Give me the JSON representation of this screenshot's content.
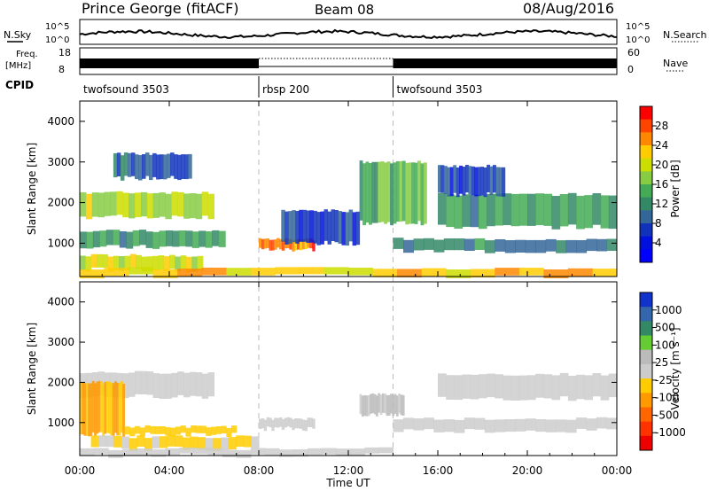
{
  "header": {
    "station": "Prince George (fitACF)",
    "beam": "Beam 08",
    "date": "08/Aug/2016"
  },
  "top_panels": {
    "nsky_label": "N.Sky",
    "nsky_ticks": [
      "10^5",
      "10^0"
    ],
    "nsearch_label": "N.Search",
    "freq_label": "Freq.",
    "freq_unit": "[MHz]",
    "freq_ticks": [
      "18",
      "8"
    ],
    "nave_ticks": [
      "60",
      "0"
    ],
    "nave_label": "Nave",
    "cpid_label": "CPID",
    "cpid_segments": [
      {
        "name": "twofsound 3503",
        "start": 0,
        "end": 8
      },
      {
        "name": "rbsp 200",
        "start": 8,
        "end": 14
      },
      {
        "name": "twofsound 3503",
        "start": 14,
        "end": 24
      }
    ]
  },
  "power_colorbar": {
    "label": "Power [dB]",
    "ticks": [
      "28",
      "24",
      "20",
      "16",
      "12",
      "8",
      "4"
    ],
    "colors": [
      "#ff0000",
      "#ff4400",
      "#ff8800",
      "#ffcc00",
      "#ccdd00",
      "#88cc44",
      "#44aa55",
      "#338866",
      "#336699",
      "#1133bb",
      "#0011dd",
      "#0000ff"
    ]
  },
  "velocity_colorbar": {
    "label": "Velocity [m s⁻¹]",
    "ticks": [
      "1000",
      "500",
      "100",
      "25",
      "-25",
      "-100",
      "-500",
      "-1000"
    ],
    "colors": [
      "#1133cc",
      "#3366aa",
      "#338866",
      "#66cc33",
      "#bbbbbb",
      "#cccccc",
      "#ffcc00",
      "#ff9900",
      "#ff6600",
      "#ff3300",
      "#ee0000"
    ]
  },
  "axes": {
    "ylabel": "Slant Range [km]",
    "yticks": [
      "4000",
      "3000",
      "2000",
      "1000"
    ],
    "xlabel": "Time UT",
    "xticks": [
      "00:00",
      "04:00",
      "08:00",
      "12:00",
      "16:00",
      "20:00",
      "00:00"
    ]
  },
  "chart_data": [
    {
      "type": "heatmap",
      "title": "",
      "variable": "Power",
      "units": "dB",
      "xlabel": "",
      "ylabel": "Slant Range [km]",
      "xlim_hours": [
        0,
        24
      ],
      "ylim_km": [
        180,
        4500
      ],
      "color_range": [
        0,
        30
      ],
      "bands": [
        {
          "t0": 0.0,
          "t1": 6.0,
          "r0": 1650,
          "r1": 2250,
          "power": 18
        },
        {
          "t0": 0.0,
          "t1": 6.5,
          "r0": 900,
          "r1": 1300,
          "power": 12
        },
        {
          "t0": 0.0,
          "t1": 5.5,
          "r0": 350,
          "r1": 700,
          "power": 20
        },
        {
          "t0": 1.5,
          "t1": 5.0,
          "r0": 2600,
          "r1": 3200,
          "power": 8
        },
        {
          "t0": 8.0,
          "t1": 10.5,
          "r0": 850,
          "r1": 1100,
          "power": 26
        },
        {
          "t0": 9.0,
          "t1": 12.5,
          "r0": 1000,
          "r1": 1800,
          "power": 6
        },
        {
          "t0": 12.5,
          "t1": 15.5,
          "r0": 1500,
          "r1": 3000,
          "power": 14
        },
        {
          "t0": 14.0,
          "t1": 24.0,
          "r0": 800,
          "r1": 1100,
          "power": 10
        },
        {
          "t0": 16.0,
          "t1": 24.0,
          "r0": 1400,
          "r1": 2200,
          "power": 12
        },
        {
          "t0": 16.0,
          "t1": 19.0,
          "r0": 2200,
          "r1": 2900,
          "power": 6
        },
        {
          "t0": 0.0,
          "t1": 24.0,
          "r0": 180,
          "r1": 380,
          "power": 22
        }
      ]
    },
    {
      "type": "heatmap",
      "title": "",
      "variable": "Velocity",
      "units": "m s⁻¹",
      "xlabel": "Time UT",
      "ylabel": "Slant Range [km]",
      "xlim_hours": [
        0,
        24
      ],
      "ylim_km": [
        180,
        4500
      ],
      "color_range": [
        -1000,
        1000
      ],
      "bands": [
        {
          "t0": 0.0,
          "t1": 6.0,
          "r0": 1650,
          "r1": 2250,
          "velocity": 0
        },
        {
          "t0": 0.0,
          "t1": 2.0,
          "r0": 700,
          "r1": 2000,
          "velocity": -300
        },
        {
          "t0": 2.0,
          "t1": 7.0,
          "r0": 700,
          "r1": 900,
          "velocity": -200
        },
        {
          "t0": 0.5,
          "t1": 8.0,
          "r0": 350,
          "r1": 650,
          "velocity": -120
        },
        {
          "t0": 8.0,
          "t1": 10.5,
          "r0": 850,
          "r1": 1100,
          "velocity": 0
        },
        {
          "t0": 12.5,
          "t1": 14.5,
          "r0": 1200,
          "r1": 1700,
          "velocity": 120
        },
        {
          "t0": 14.0,
          "t1": 24.0,
          "r0": 800,
          "r1": 1100,
          "velocity": 0
        },
        {
          "t0": 16.0,
          "t1": 24.0,
          "r0": 1600,
          "r1": 2200,
          "velocity": 0
        },
        {
          "t0": 0.0,
          "t1": 14.0,
          "r0": 180,
          "r1": 350,
          "velocity": 60
        }
      ]
    }
  ]
}
